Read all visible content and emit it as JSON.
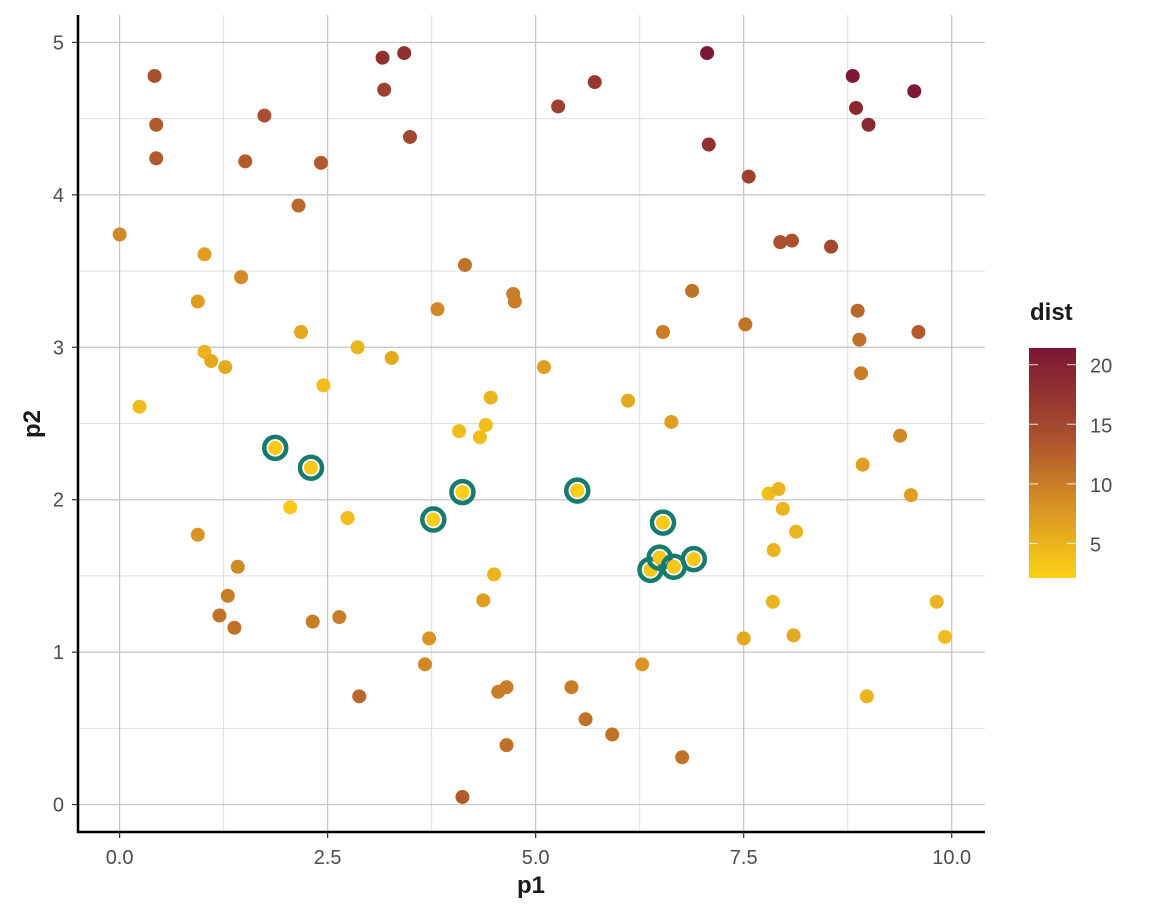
{
  "chart_data": {
    "type": "scatter",
    "xlabel": "p1",
    "ylabel": "p2",
    "xlim": [
      -0.5,
      10.4
    ],
    "ylim": [
      -0.18,
      5.18
    ],
    "x_ticks": [
      "0.0",
      "2.5",
      "5.0",
      "7.5",
      "10.0"
    ],
    "x_tick_values": [
      0,
      2.5,
      5,
      7.5,
      10
    ],
    "y_ticks": [
      "0",
      "1",
      "2",
      "3",
      "4",
      "5"
    ],
    "y_tick_values": [
      0,
      1,
      2,
      3,
      4,
      5
    ],
    "grid": true,
    "legend": {
      "title": "dist",
      "placement": "right",
      "labels": [
        "20",
        "15",
        "10",
        "5"
      ],
      "values": [
        20,
        15,
        10,
        5
      ],
      "range": [
        2.1,
        21.4
      ],
      "colors": [
        [
          2.1,
          "#fcd116"
        ],
        [
          8,
          "#d99424"
        ],
        [
          14,
          "#a9502e"
        ],
        [
          21.4,
          "#7a1535"
        ]
      ]
    },
    "highlight_ring_color": "#167a6e",
    "points": [
      [
        0.0,
        3.74,
        9,
        0
      ],
      [
        0.24,
        2.61,
        4,
        0
      ],
      [
        0.42,
        4.78,
        14,
        0
      ],
      [
        0.44,
        4.46,
        13,
        0
      ],
      [
        0.44,
        4.24,
        13,
        0
      ],
      [
        0.94,
        3.3,
        7,
        0
      ],
      [
        1.02,
        2.97,
        5,
        0
      ],
      [
        1.02,
        3.61,
        7,
        0
      ],
      [
        1.1,
        2.91,
        6,
        0
      ],
      [
        1.27,
        2.87,
        6,
        0
      ],
      [
        0.94,
        1.77,
        8,
        0
      ],
      [
        1.46,
        3.46,
        9,
        0
      ],
      [
        1.51,
        4.22,
        13,
        0
      ],
      [
        1.74,
        4.52,
        14,
        0
      ],
      [
        1.42,
        1.56,
        9,
        0
      ],
      [
        1.3,
        1.37,
        10,
        0
      ],
      [
        1.2,
        1.24,
        11,
        0
      ],
      [
        1.38,
        1.16,
        11,
        0
      ],
      [
        1.87,
        2.34,
        3,
        1
      ],
      [
        2.15,
        3.93,
        12,
        0
      ],
      [
        2.18,
        3.1,
        6,
        0
      ],
      [
        2.42,
        4.21,
        13,
        0
      ],
      [
        2.45,
        2.75,
        4,
        0
      ],
      [
        2.3,
        2.21,
        3,
        1
      ],
      [
        2.05,
        1.95,
        3,
        0
      ],
      [
        2.32,
        1.2,
        10,
        0
      ],
      [
        2.64,
        1.23,
        10,
        0
      ],
      [
        2.74,
        1.88,
        4,
        0
      ],
      [
        2.86,
        3.0,
        5,
        0
      ],
      [
        2.88,
        0.71,
        12,
        0
      ],
      [
        3.16,
        4.9,
        18,
        0
      ],
      [
        3.18,
        4.69,
        16,
        0
      ],
      [
        3.42,
        4.93,
        18,
        0
      ],
      [
        3.27,
        2.93,
        6,
        0
      ],
      [
        3.49,
        4.38,
        15,
        0
      ],
      [
        3.77,
        1.87,
        2.5,
        1
      ],
      [
        3.82,
        3.25,
        9,
        0
      ],
      [
        3.72,
        1.09,
        8,
        0
      ],
      [
        3.67,
        0.92,
        9,
        0
      ],
      [
        4.12,
        2.05,
        2.5,
        1
      ],
      [
        4.15,
        3.54,
        11,
        0
      ],
      [
        4.08,
        2.45,
        4,
        0
      ],
      [
        4.33,
        2.41,
        4,
        0
      ],
      [
        4.4,
        2.49,
        4,
        0
      ],
      [
        4.46,
        2.67,
        5,
        0
      ],
      [
        4.37,
        1.34,
        7,
        0
      ],
      [
        4.5,
        1.51,
        5,
        0
      ],
      [
        4.55,
        0.74,
        10,
        0
      ],
      [
        4.65,
        0.77,
        10,
        0
      ],
      [
        4.65,
        0.39,
        11,
        0
      ],
      [
        4.12,
        0.05,
        13,
        0
      ],
      [
        4.73,
        3.35,
        10,
        0
      ],
      [
        4.75,
        3.3,
        10,
        0
      ],
      [
        5.1,
        2.87,
        7,
        0
      ],
      [
        5.5,
        2.06,
        2.5,
        1
      ],
      [
        5.27,
        4.58,
        16,
        0
      ],
      [
        5.71,
        4.74,
        17,
        0
      ],
      [
        5.43,
        0.77,
        10,
        0
      ],
      [
        5.6,
        0.56,
        11,
        0
      ],
      [
        5.92,
        0.46,
        11,
        0
      ],
      [
        6.11,
        2.65,
        6,
        0
      ],
      [
        6.28,
        0.92,
        8,
        0
      ],
      [
        6.53,
        3.1,
        10,
        0
      ],
      [
        6.63,
        2.51,
        7,
        0
      ],
      [
        6.53,
        1.85,
        3,
        1
      ],
      [
        6.38,
        1.54,
        3,
        1
      ],
      [
        6.49,
        1.62,
        3,
        1
      ],
      [
        6.66,
        1.56,
        3,
        1
      ],
      [
        6.9,
        1.61,
        3,
        1
      ],
      [
        6.88,
        3.37,
        11,
        0
      ],
      [
        7.06,
        4.93,
        21,
        0
      ],
      [
        7.08,
        4.33,
        18,
        0
      ],
      [
        6.76,
        0.31,
        11,
        0
      ],
      [
        7.5,
        1.09,
        6,
        0
      ],
      [
        7.52,
        3.15,
        11,
        0
      ],
      [
        7.56,
        4.12,
        16,
        0
      ],
      [
        7.8,
        2.04,
        4,
        0
      ],
      [
        7.92,
        2.07,
        5,
        0
      ],
      [
        7.97,
        1.94,
        5,
        0
      ],
      [
        7.86,
        1.67,
        5,
        0
      ],
      [
        7.85,
        1.33,
        5,
        0
      ],
      [
        7.94,
        3.69,
        14,
        0
      ],
      [
        8.08,
        3.7,
        14,
        0
      ],
      [
        8.13,
        1.79,
        5,
        0
      ],
      [
        8.1,
        1.11,
        6,
        0
      ],
      [
        8.55,
        3.66,
        15,
        0
      ],
      [
        8.81,
        4.78,
        21,
        0
      ],
      [
        8.85,
        4.57,
        19,
        0
      ],
      [
        9.0,
        4.46,
        19,
        0
      ],
      [
        8.87,
        3.24,
        12,
        0
      ],
      [
        8.89,
        3.05,
        11,
        0
      ],
      [
        8.91,
        2.83,
        10,
        0
      ],
      [
        8.93,
        2.23,
        7,
        0
      ],
      [
        8.98,
        0.71,
        5,
        0
      ],
      [
        9.38,
        2.42,
        9,
        0
      ],
      [
        9.51,
        2.03,
        7,
        0
      ],
      [
        9.55,
        4.68,
        21,
        0
      ],
      [
        9.6,
        3.1,
        13,
        0
      ],
      [
        9.82,
        1.33,
        5,
        0
      ],
      [
        9.92,
        1.1,
        4,
        0
      ]
    ],
    "point_fields": [
      "p1",
      "p2",
      "dist",
      "highlighted"
    ]
  }
}
